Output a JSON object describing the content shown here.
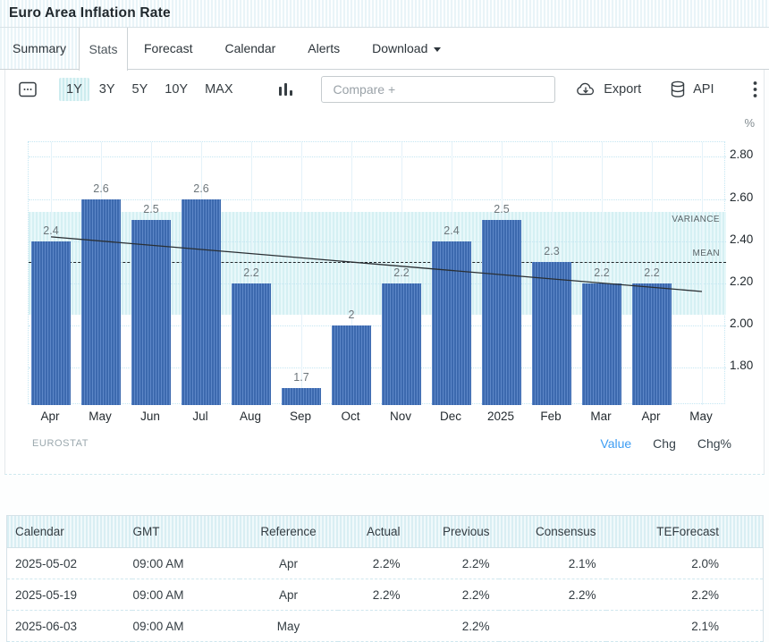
{
  "header": {
    "title": "Euro Area Inflation Rate"
  },
  "tabs": [
    {
      "label": "Summary",
      "name": "summary",
      "striped": true
    },
    {
      "label": "Stats",
      "name": "stats",
      "active": true
    },
    {
      "label": "Forecast",
      "name": "forecast"
    },
    {
      "label": "Calendar",
      "name": "calendar"
    },
    {
      "label": "Alerts",
      "name": "alerts"
    },
    {
      "label": "Download",
      "name": "download",
      "caret": true
    }
  ],
  "toolbar": {
    "ranges": [
      {
        "label": "1Y",
        "active": true
      },
      {
        "label": "3Y"
      },
      {
        "label": "5Y"
      },
      {
        "label": "10Y"
      },
      {
        "label": "MAX"
      }
    ],
    "compare_placeholder": "Compare +",
    "export_label": "Export",
    "api_label": "API",
    "icons": [
      "calendar-icon",
      "bar-chart-icon",
      "cloud-download-icon",
      "database-icon",
      "kebab-menu-icon"
    ]
  },
  "chart_data": {
    "type": "bar",
    "title": "Euro Area Inflation Rate",
    "unit": "%",
    "categories": [
      "Apr",
      "May",
      "Jun",
      "Jul",
      "Aug",
      "Sep",
      "Oct",
      "Nov",
      "Dec",
      "2025",
      "Feb",
      "Mar",
      "Apr",
      "May"
    ],
    "values": [
      2.4,
      2.6,
      2.5,
      2.6,
      2.2,
      1.7,
      2,
      2.2,
      2.4,
      2.5,
      2.3,
      2.2,
      2.2
    ],
    "bar_labels": [
      "2.4",
      "2.6",
      "2.5",
      "2.6",
      "2.2",
      "1.7",
      "2",
      "2.2",
      "2.4",
      "2.5",
      "2.3",
      "2.2",
      "2.2"
    ],
    "ylim": [
      1.62,
      2.87
    ],
    "yticks": [
      1.8,
      2.0,
      2.2,
      2.4,
      2.6,
      2.8
    ],
    "ytick_labels": [
      "1.80",
      "2.00",
      "2.20",
      "2.40",
      "2.60",
      "2.80"
    ],
    "grid": true,
    "variance_band": [
      2.05,
      2.54
    ],
    "variance_label": "VARIANCE",
    "mean": 2.3,
    "mean_label": "MEAN",
    "trend": {
      "start": 2.42,
      "end": 2.16
    },
    "bar_color": "#3c69ae",
    "band_color": "#d9f2f4",
    "accent_color": "#3d9df3",
    "source": "EUROSTAT",
    "footer_links": [
      {
        "label": "Value",
        "active": true
      },
      {
        "label": "Chg"
      },
      {
        "label": "Chg%"
      }
    ]
  },
  "table": {
    "headers": [
      "Calendar",
      "GMT",
      "Reference",
      "Actual",
      "Previous",
      "Consensus",
      "TEForecast"
    ],
    "rows": [
      [
        "2025-05-02",
        "09:00 AM",
        "Apr",
        "2.2%",
        "2.2%",
        "2.1%",
        "2.0%"
      ],
      [
        "2025-05-19",
        "09:00 AM",
        "Apr",
        "2.2%",
        "2.2%",
        "2.2%",
        "2.2%"
      ],
      [
        "2025-06-03",
        "09:00 AM",
        "May",
        "",
        "2.2%",
        "",
        "2.1%"
      ]
    ]
  }
}
